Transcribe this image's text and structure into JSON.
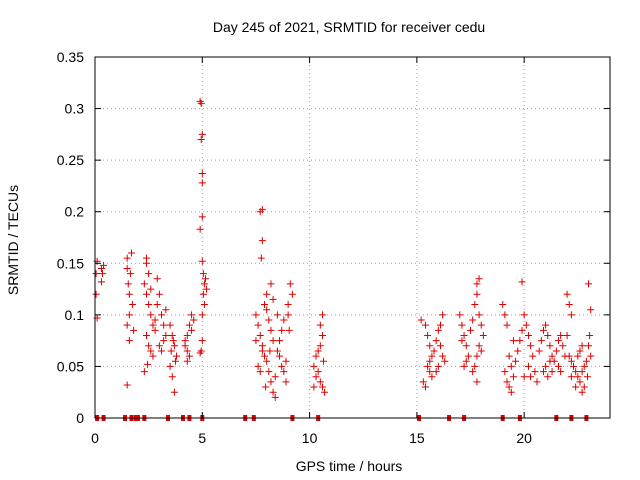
{
  "chart_data": {
    "type": "scatter",
    "title": "Day 245 of 2021, SRMTID for receiver cedu",
    "xlabel": "GPS time / hours",
    "ylabel": "SRMTID / TECUs",
    "xlim": [
      0,
      24
    ],
    "ylim": [
      0,
      0.35
    ],
    "grid": true,
    "marker": "+",
    "series_color": "#dd0000",
    "x_ticks": [
      {
        "value": 0,
        "label": "0"
      },
      {
        "value": 5,
        "label": "5"
      },
      {
        "value": 10,
        "label": "10"
      },
      {
        "value": 15,
        "label": "15"
      },
      {
        "value": 20,
        "label": "20"
      }
    ],
    "y_ticks": [
      {
        "value": 0,
        "label": "0"
      },
      {
        "value": 0.05,
        "label": "0.05"
      },
      {
        "value": 0.1,
        "label": "0.1"
      },
      {
        "value": 0.15,
        "label": "0.15"
      },
      {
        "value": 0.2,
        "label": "0.2"
      },
      {
        "value": 0.25,
        "label": "0.25"
      },
      {
        "value": 0.3,
        "label": "0.3"
      },
      {
        "value": 0.35,
        "label": "0.35"
      }
    ],
    "zero_markers_x": [
      0.1,
      0.4,
      1.4,
      1.7,
      1.9,
      2.0,
      2.3,
      3.4,
      4.1,
      4.4,
      5.0,
      7.0,
      7.4,
      9.2,
      10.4,
      15.1,
      16.5,
      17.2,
      19.0,
      19.8,
      21.5,
      22.2,
      22.9
    ],
    "points": [
      [
        0.05,
        0.12
      ],
      [
        0.05,
        0.14
      ],
      [
        0.1,
        0.152
      ],
      [
        0.1,
        0.097
      ],
      [
        0.3,
        0.145
      ],
      [
        0.3,
        0.132
      ],
      [
        0.4,
        0.148
      ],
      [
        0.35,
        0.14
      ],
      [
        1.5,
        0.155
      ],
      [
        1.5,
        0.145
      ],
      [
        1.55,
        0.13
      ],
      [
        1.6,
        0.12
      ],
      [
        1.6,
        0.1
      ],
      [
        1.5,
        0.09
      ],
      [
        1.7,
        0.16
      ],
      [
        1.6,
        0.075
      ],
      [
        1.5,
        0.032
      ],
      [
        1.75,
        0.11
      ],
      [
        1.8,
        0.085
      ],
      [
        1.65,
        0.14
      ],
      [
        2.4,
        0.155
      ],
      [
        2.4,
        0.15
      ],
      [
        2.5,
        0.14
      ],
      [
        2.3,
        0.13
      ],
      [
        2.4,
        0.12
      ],
      [
        2.5,
        0.11
      ],
      [
        2.6,
        0.1
      ],
      [
        2.7,
        0.09
      ],
      [
        2.8,
        0.085
      ],
      [
        2.4,
        0.08
      ],
      [
        2.5,
        0.07
      ],
      [
        2.6,
        0.065
      ],
      [
        2.7,
        0.06
      ],
      [
        2.3,
        0.045
      ],
      [
        2.45,
        0.052
      ],
      [
        2.9,
        0.11
      ],
      [
        3.0,
        0.12
      ],
      [
        3.1,
        0.1
      ],
      [
        3.2,
        0.09
      ],
      [
        3.3,
        0.08
      ],
      [
        3.0,
        0.07
      ],
      [
        3.1,
        0.065
      ],
      [
        3.2,
        0.075
      ],
      [
        2.8,
        0.095
      ],
      [
        3.3,
        0.105
      ],
      [
        2.6,
        0.125
      ],
      [
        2.9,
        0.135
      ],
      [
        3.5,
        0.09
      ],
      [
        3.6,
        0.08
      ],
      [
        3.7,
        0.07
      ],
      [
        3.8,
        0.06
      ],
      [
        3.5,
        0.05
      ],
      [
        3.6,
        0.04
      ],
      [
        3.7,
        0.025
      ],
      [
        3.55,
        0.065
      ],
      [
        3.75,
        0.055
      ],
      [
        3.65,
        0.075
      ],
      [
        4.2,
        0.07
      ],
      [
        4.3,
        0.08
      ],
      [
        4.4,
        0.09
      ],
      [
        4.5,
        0.1
      ],
      [
        4.3,
        0.065
      ],
      [
        4.4,
        0.06
      ],
      [
        4.2,
        0.075
      ],
      [
        4.5,
        0.085
      ],
      [
        4.6,
        0.095
      ],
      [
        4.3,
        0.055
      ],
      [
        4.9,
        0.307
      ],
      [
        4.95,
        0.305
      ],
      [
        5.0,
        0.275
      ],
      [
        4.95,
        0.27
      ],
      [
        5.0,
        0.237
      ],
      [
        5.0,
        0.228
      ],
      [
        5.0,
        0.195
      ],
      [
        4.9,
        0.183
      ],
      [
        5.0,
        0.152
      ],
      [
        5.05,
        0.14
      ],
      [
        5.1,
        0.13
      ],
      [
        5.05,
        0.12
      ],
      [
        5.15,
        0.135
      ],
      [
        5.2,
        0.125
      ],
      [
        5.1,
        0.11
      ],
      [
        5.0,
        0.1
      ],
      [
        5.0,
        0.075
      ],
      [
        4.95,
        0.065
      ],
      [
        4.9,
        0.063
      ],
      [
        7.5,
        0.1
      ],
      [
        7.6,
        0.09
      ],
      [
        7.7,
        0.08
      ],
      [
        7.8,
        0.07
      ],
      [
        7.9,
        0.06
      ],
      [
        7.6,
        0.05
      ],
      [
        7.7,
        0.045
      ],
      [
        7.8,
        0.065
      ],
      [
        7.5,
        0.075
      ],
      [
        7.7,
        0.2
      ],
      [
        7.8,
        0.202
      ],
      [
        7.8,
        0.172
      ],
      [
        7.75,
        0.155
      ],
      [
        7.9,
        0.11
      ],
      [
        8.0,
        0.105
      ],
      [
        8.1,
        0.095
      ],
      [
        8.2,
        0.085
      ],
      [
        8.3,
        0.075
      ],
      [
        8.0,
        0.055
      ],
      [
        8.1,
        0.045
      ],
      [
        8.2,
        0.035
      ],
      [
        8.3,
        0.025
      ],
      [
        8.4,
        0.02
      ],
      [
        8.0,
        0.12
      ],
      [
        8.2,
        0.13
      ],
      [
        8.3,
        0.115
      ],
      [
        8.5,
        0.065
      ],
      [
        8.6,
        0.06
      ],
      [
        8.7,
        0.05
      ],
      [
        8.8,
        0.045
      ],
      [
        8.9,
        0.055
      ],
      [
        8.6,
        0.075
      ],
      [
        8.7,
        0.085
      ],
      [
        8.8,
        0.095
      ],
      [
        9.0,
        0.11
      ],
      [
        9.1,
        0.13
      ],
      [
        9.0,
        0.1
      ],
      [
        9.2,
        0.12
      ],
      [
        8.5,
        0.1
      ],
      [
        8.4,
        0.04
      ],
      [
        8.9,
        0.035
      ],
      [
        9.05,
        0.085
      ],
      [
        8.15,
        0.065
      ],
      [
        7.95,
        0.03
      ],
      [
        10.2,
        0.05
      ],
      [
        10.3,
        0.06
      ],
      [
        10.4,
        0.065
      ],
      [
        10.5,
        0.07
      ],
      [
        10.6,
        0.08
      ],
      [
        10.5,
        0.09
      ],
      [
        10.6,
        0.1
      ],
      [
        10.4,
        0.045
      ],
      [
        10.5,
        0.035
      ],
      [
        10.6,
        0.03
      ],
      [
        10.7,
        0.025
      ],
      [
        10.3,
        0.04
      ],
      [
        10.2,
        0.03
      ],
      [
        10.65,
        0.055
      ],
      [
        15.2,
        0.095
      ],
      [
        15.4,
        0.09
      ],
      [
        15.5,
        0.08
      ],
      [
        15.6,
        0.07
      ],
      [
        15.7,
        0.06
      ],
      [
        15.5,
        0.05
      ],
      [
        15.6,
        0.045
      ],
      [
        15.7,
        0.04
      ],
      [
        15.3,
        0.035
      ],
      [
        15.4,
        0.03
      ],
      [
        15.8,
        0.065
      ],
      [
        15.9,
        0.075
      ],
      [
        16.0,
        0.085
      ],
      [
        16.1,
        0.07
      ],
      [
        16.2,
        0.06
      ],
      [
        16.3,
        0.055
      ],
      [
        16.0,
        0.05
      ],
      [
        16.1,
        0.09
      ],
      [
        16.2,
        0.1
      ],
      [
        15.6,
        0.055
      ],
      [
        15.9,
        0.045
      ],
      [
        17.0,
        0.1
      ],
      [
        17.1,
        0.09
      ],
      [
        17.2,
        0.08
      ],
      [
        17.3,
        0.07
      ],
      [
        17.4,
        0.06
      ],
      [
        17.2,
        0.05
      ],
      [
        17.5,
        0.085
      ],
      [
        17.6,
        0.095
      ],
      [
        17.7,
        0.11
      ],
      [
        17.8,
        0.13
      ],
      [
        17.9,
        0.135
      ],
      [
        17.8,
        0.12
      ],
      [
        17.9,
        0.1
      ],
      [
        18.0,
        0.09
      ],
      [
        18.1,
        0.08
      ],
      [
        17.9,
        0.07
      ],
      [
        17.8,
        0.06
      ],
      [
        17.7,
        0.05
      ],
      [
        17.8,
        0.035
      ],
      [
        17.3,
        0.055
      ],
      [
        17.1,
        0.075
      ],
      [
        18.0,
        0.065
      ],
      [
        17.6,
        0.045
      ],
      [
        19.0,
        0.11
      ],
      [
        19.1,
        0.1
      ],
      [
        19.2,
        0.09
      ],
      [
        19.3,
        0.06
      ],
      [
        19.4,
        0.05
      ],
      [
        19.5,
        0.04
      ],
      [
        19.2,
        0.035
      ],
      [
        19.3,
        0.03
      ],
      [
        19.4,
        0.025
      ],
      [
        19.1,
        0.045
      ],
      [
        19.6,
        0.055
      ],
      [
        19.7,
        0.065
      ],
      [
        19.8,
        0.075
      ],
      [
        19.9,
        0.132
      ],
      [
        20.0,
        0.1
      ],
      [
        20.1,
        0.09
      ],
      [
        20.2,
        0.08
      ],
      [
        20.3,
        0.07
      ],
      [
        20.4,
        0.06
      ],
      [
        20.2,
        0.05
      ],
      [
        20.5,
        0.045
      ],
      [
        20.6,
        0.035
      ],
      [
        19.9,
        0.085
      ],
      [
        20.0,
        0.04
      ],
      [
        20.3,
        0.04
      ],
      [
        19.5,
        0.075
      ],
      [
        20.7,
        0.065
      ],
      [
        20.8,
        0.075
      ],
      [
        20.9,
        0.085
      ],
      [
        21.0,
        0.09
      ],
      [
        21.1,
        0.08
      ],
      [
        21.2,
        0.07
      ],
      [
        21.3,
        0.06
      ],
      [
        21.0,
        0.05
      ],
      [
        21.1,
        0.04
      ],
      [
        20.9,
        0.045
      ],
      [
        21.4,
        0.055
      ],
      [
        21.5,
        0.065
      ],
      [
        21.6,
        0.075
      ],
      [
        21.7,
        0.08
      ],
      [
        21.8,
        0.07
      ],
      [
        21.9,
        0.06
      ],
      [
        21.6,
        0.05
      ],
      [
        21.7,
        0.045
      ],
      [
        21.2,
        0.055
      ],
      [
        21.3,
        0.045
      ],
      [
        22.0,
        0.12
      ],
      [
        22.1,
        0.11
      ],
      [
        22.2,
        0.1
      ],
      [
        22.0,
        0.08
      ],
      [
        22.1,
        0.06
      ],
      [
        22.2,
        0.055
      ],
      [
        22.3,
        0.05
      ],
      [
        22.4,
        0.045
      ],
      [
        22.5,
        0.04
      ],
      [
        22.6,
        0.035
      ],
      [
        22.7,
        0.045
      ],
      [
        22.8,
        0.05
      ],
      [
        22.9,
        0.055
      ],
      [
        22.6,
        0.065
      ],
      [
        22.7,
        0.07
      ],
      [
        22.5,
        0.06
      ],
      [
        22.8,
        0.03
      ],
      [
        22.4,
        0.03
      ],
      [
        22.2,
        0.04
      ],
      [
        22.7,
        0.025
      ],
      [
        23.0,
        0.13
      ],
      [
        23.1,
        0.105
      ],
      [
        23.0,
        0.07
      ],
      [
        23.1,
        0.06
      ],
      [
        23.05,
        0.08
      ],
      [
        22.95,
        0.04
      ]
    ]
  }
}
